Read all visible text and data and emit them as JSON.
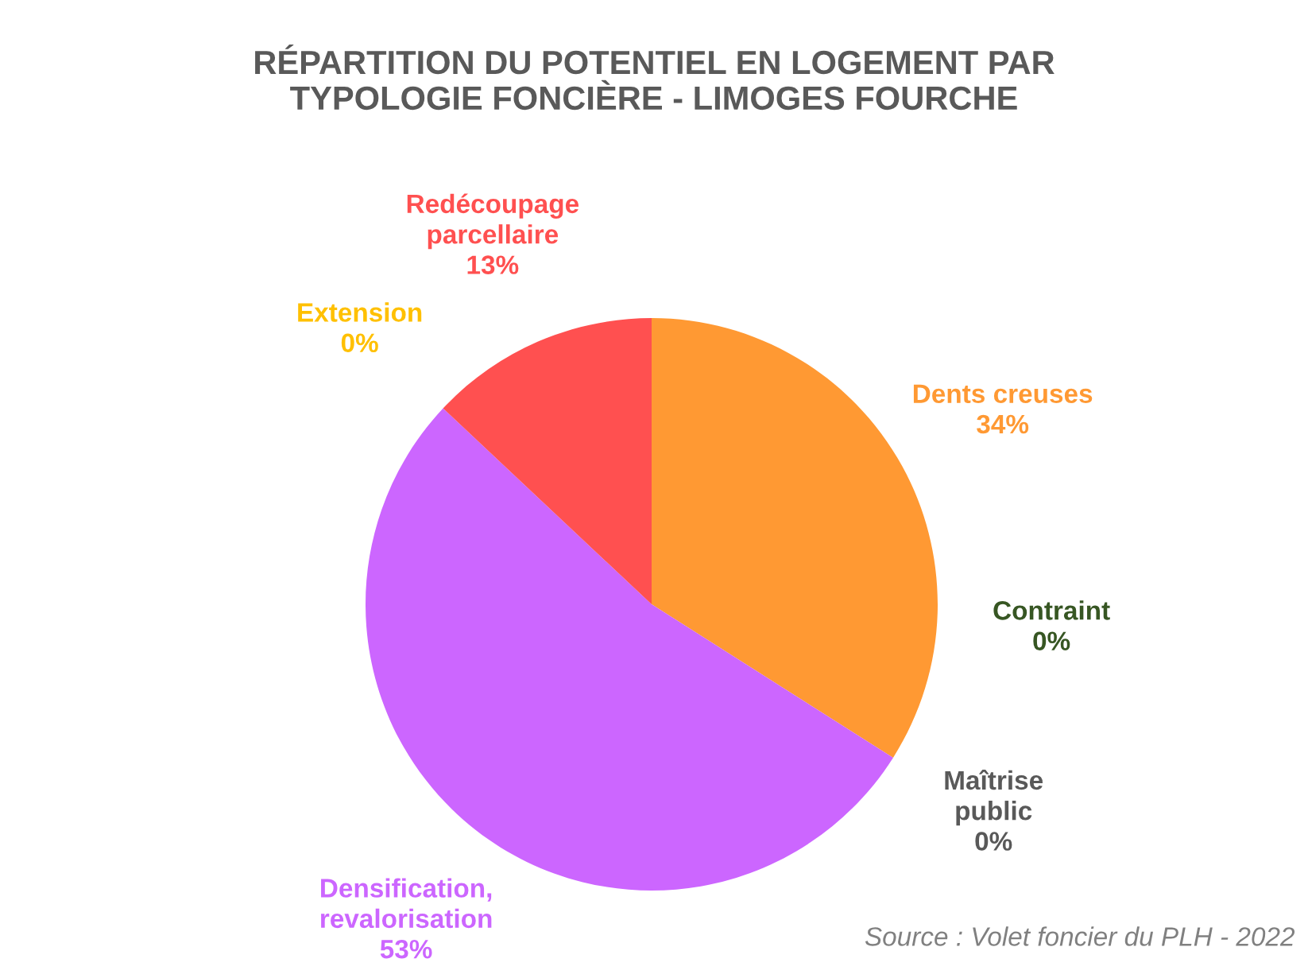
{
  "chart_data": {
    "type": "pie",
    "title": "RÉPARTITION DU POTENTIEL EN LOGEMENT PAR TYPOLOGIE FONCIÈRE - LIMOGES FOURCHE",
    "categories": [
      "Dents creuses",
      "Contraint",
      "Maîtrise public",
      "Densification, revalorisation",
      "Extension",
      "Redécoupage parcellaire"
    ],
    "values": [
      34,
      0,
      0,
      53,
      0,
      13
    ],
    "colors": [
      "#ff9933",
      "#375623",
      "#595959",
      "#cc66ff",
      "#ffc000",
      "#ff5050"
    ],
    "value_labels": [
      "34%",
      "0%",
      "0%",
      "53%",
      "0%",
      "13%"
    ],
    "annotations": [
      "Source : Volet foncier du PLH - 2022"
    ]
  }
}
